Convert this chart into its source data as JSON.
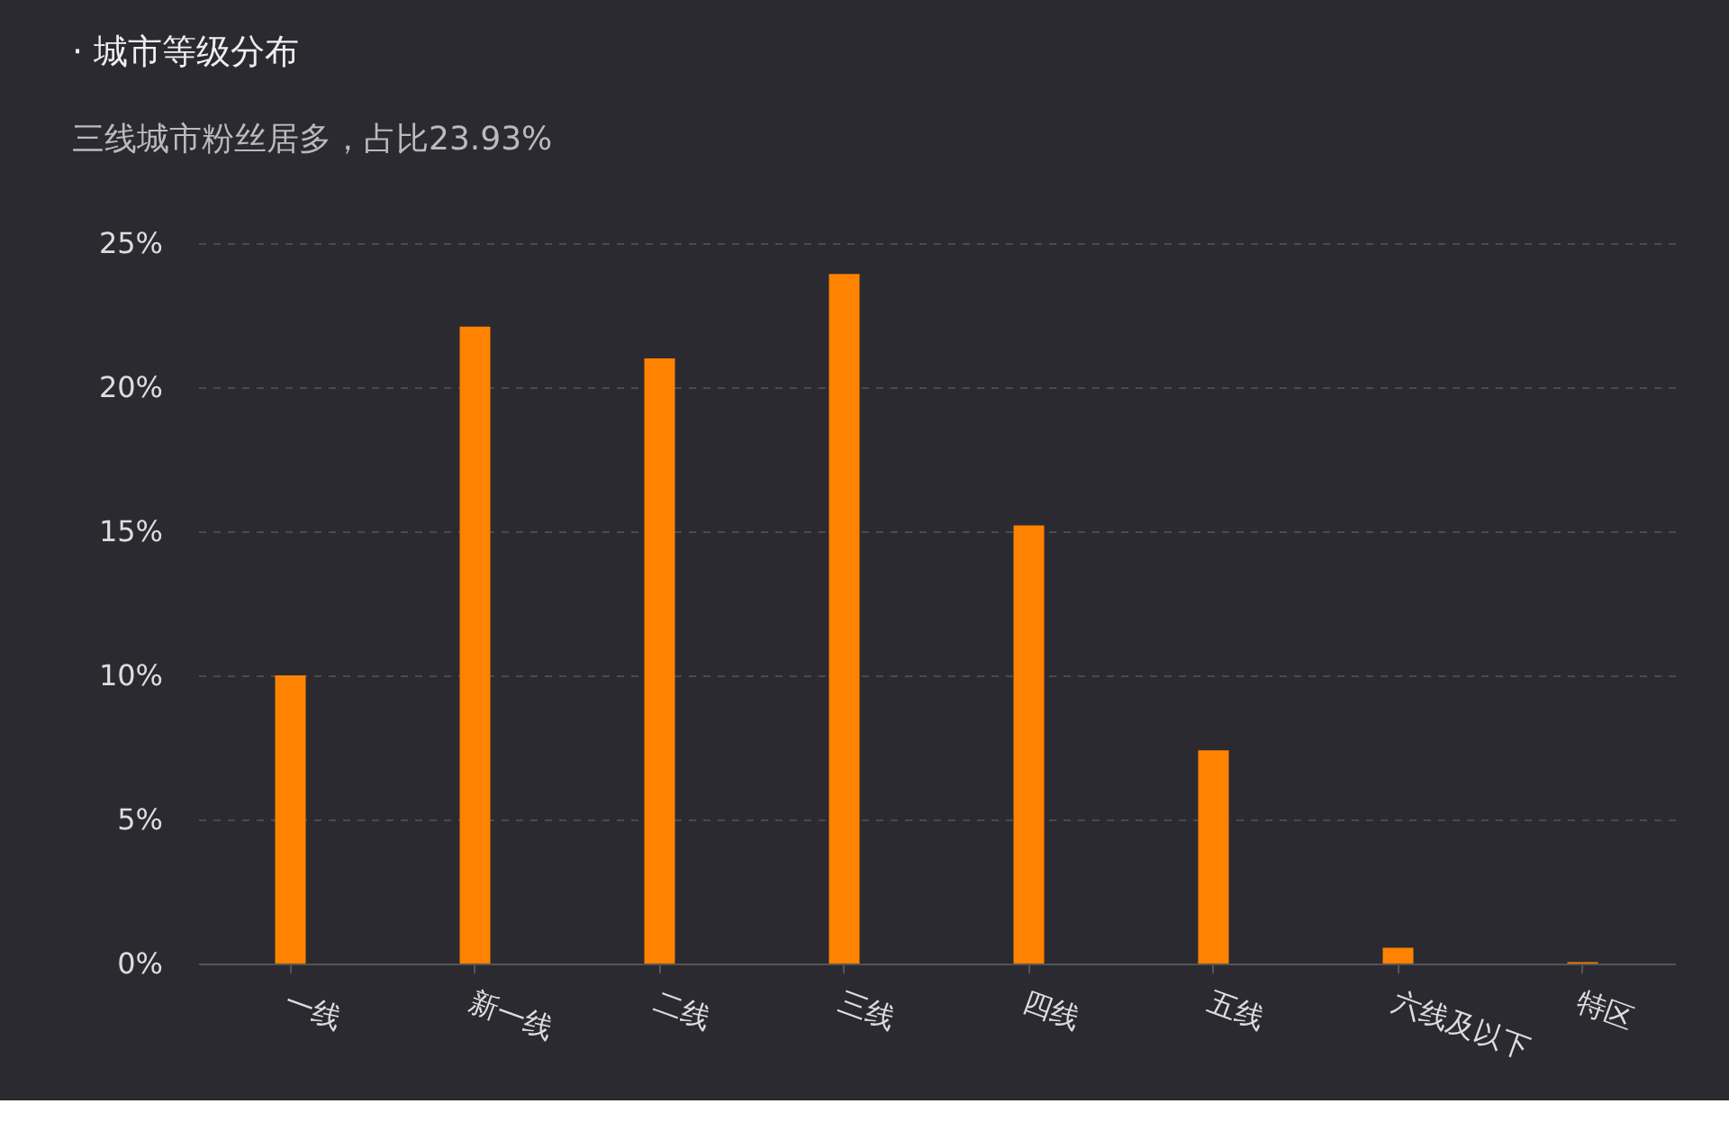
{
  "chart_data": {
    "type": "bar",
    "title": "· 城市等级分布",
    "subtitle": "三线城市粉丝居多，占比23.93%",
    "categories": [
      "一线",
      "新一线",
      "二线",
      "三线",
      "四线",
      "五线",
      "六线及以下",
      "特区"
    ],
    "values": [
      10.0,
      22.1,
      21.0,
      23.93,
      15.2,
      7.4,
      0.55,
      0.05
    ],
    "color": "#ff8200",
    "ylim": [
      0,
      25
    ],
    "yticks": [
      {
        "value": 0,
        "label": "0%"
      },
      {
        "value": 5,
        "label": "5%"
      },
      {
        "value": 10,
        "label": "10%"
      },
      {
        "value": 15,
        "label": "15%"
      },
      {
        "value": 20,
        "label": "20%"
      },
      {
        "value": 25,
        "label": "25%"
      }
    ],
    "grid": "y"
  }
}
